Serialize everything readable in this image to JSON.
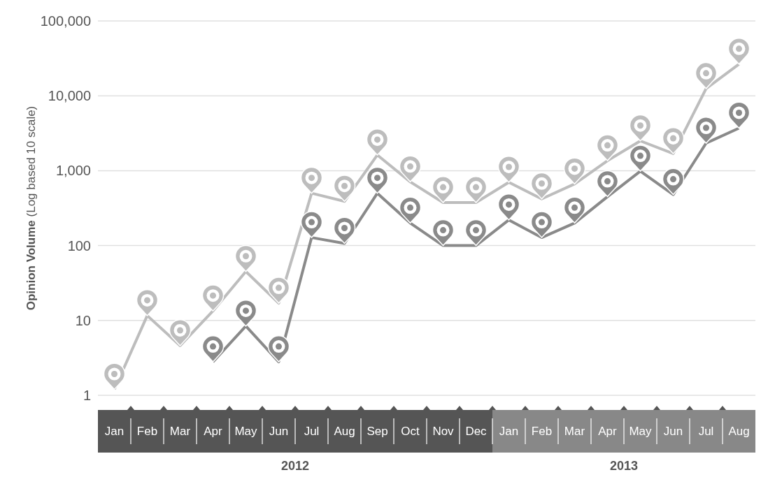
{
  "chart_data": {
    "type": "line",
    "ylabel": "Opinion Volume (Log based 10 scale)",
    "log": true,
    "grid": "y",
    "line_style": "solid",
    "categories": [
      "Jan",
      "Feb",
      "Mar",
      "Apr",
      "May",
      "Jun",
      "Jul",
      "Aug",
      "Sep",
      "Oct",
      "Nov",
      "Dec",
      "Jan",
      "Feb",
      "Mar",
      "Apr",
      "May",
      "Jun",
      "Jul",
      "Aug"
    ],
    "ylim": [
      1,
      100000
    ],
    "yticks": [
      1,
      10,
      100,
      {
        "value": 1000,
        "label": "1,000"
      },
      {
        "value": 10000,
        "label": "10,000"
      },
      {
        "value": 100000,
        "label": "100,000"
      }
    ],
    "series": [
      {
        "color": "#bdbdbd",
        "values": [
          1.2,
          11.6,
          4.6,
          13.4,
          45,
          17,
          500,
          390,
          1620,
          710,
          375,
          375,
          700,
          420,
          665,
          1360,
          2500,
          1690,
          12500,
          26500
        ]
      },
      {
        "color": "#8a8a8a",
        "values": [
          null,
          null,
          null,
          2.8,
          8.4,
          2.8,
          128,
          107,
          500,
          200,
          100,
          100,
          220,
          128,
          200,
          450,
          985,
          480,
          2330,
          3700
        ]
      }
    ],
    "annotations": [
      "2012",
      "2013"
    ]
  }
}
